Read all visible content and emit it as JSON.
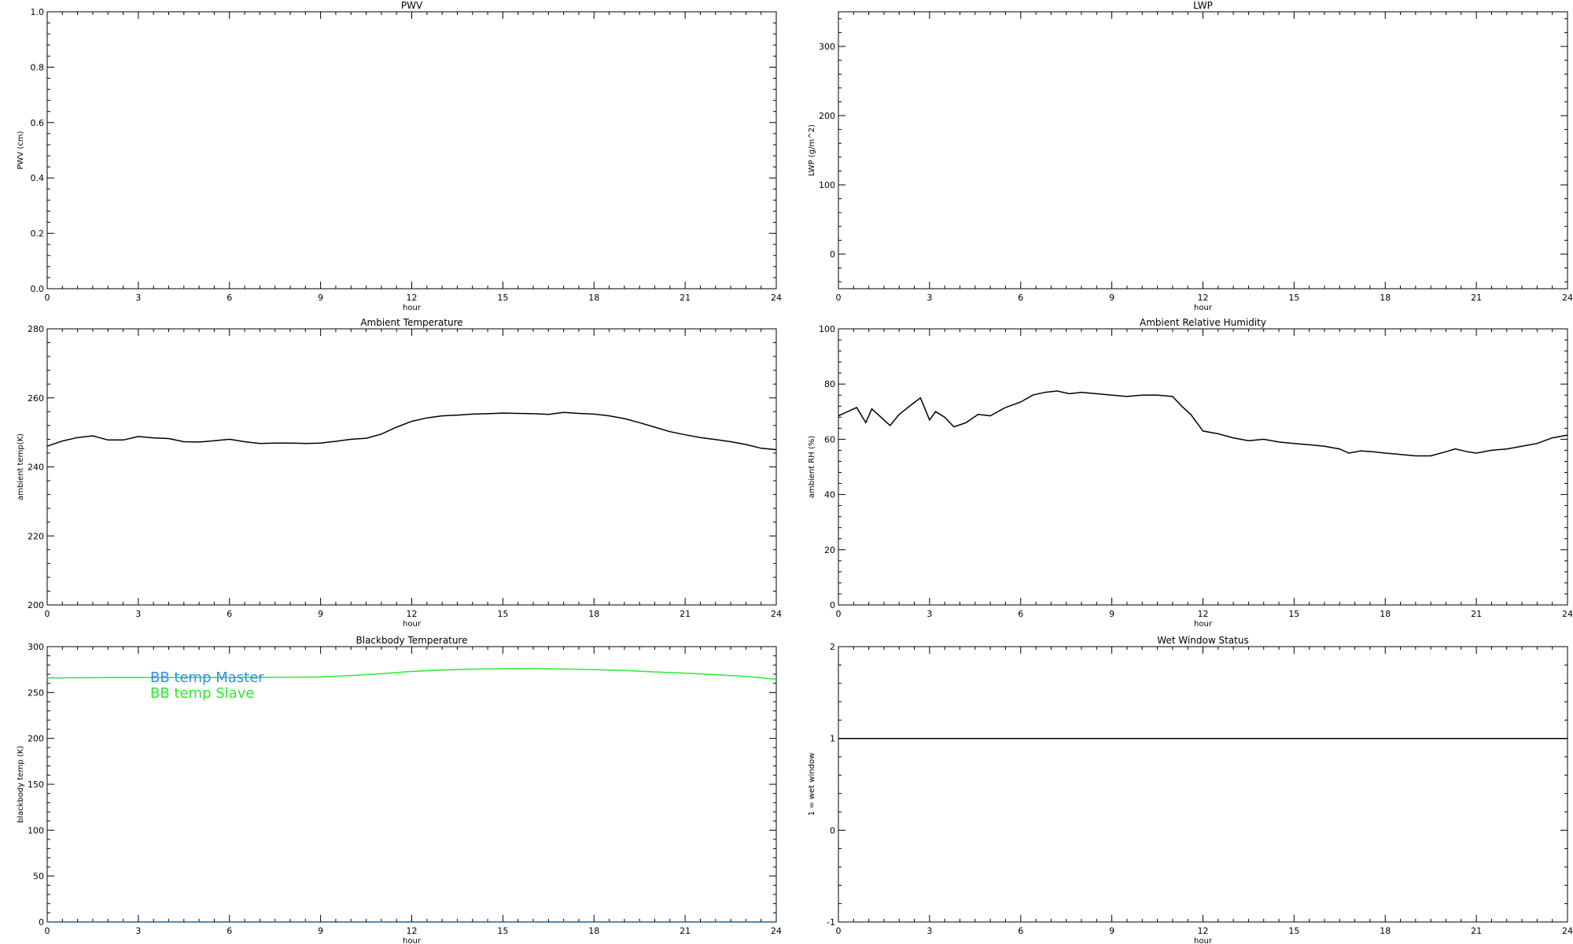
{
  "chart_data": [
    {
      "type": "line",
      "title": "PWV",
      "xlabel": "hour",
      "ylabel": "PWV (cm)",
      "xlim": [
        0,
        24
      ],
      "ylim": [
        0,
        1
      ],
      "xticks": [
        0,
        3,
        6,
        9,
        12,
        15,
        18,
        21,
        24
      ],
      "yticks": [
        0,
        0.2,
        0.4,
        0.6,
        0.8,
        1
      ],
      "ytick_labels": [
        "0.0",
        "0.2",
        "0.4",
        "0.6",
        "0.8",
        "1.0"
      ],
      "series": []
    },
    {
      "type": "line",
      "title": "LWP",
      "xlabel": "hour",
      "ylabel": "LWP (g/m^2)",
      "xlim": [
        0,
        24
      ],
      "ylim": [
        -50,
        350
      ],
      "xticks": [
        0,
        3,
        6,
        9,
        12,
        15,
        18,
        21,
        24
      ],
      "yticks": [
        0,
        100,
        200,
        300
      ],
      "ytick_labels": [
        "0",
        "100",
        "200",
        "300"
      ],
      "series": []
    },
    {
      "type": "line",
      "title": "Ambient Temperature",
      "xlabel": "hour",
      "ylabel": "ambient temp(K)",
      "xlim": [
        0,
        24
      ],
      "ylim": [
        200,
        280
      ],
      "xticks": [
        0,
        3,
        6,
        9,
        12,
        15,
        18,
        21,
        24
      ],
      "yticks": [
        200,
        220,
        240,
        260,
        280
      ],
      "ytick_labels": [
        "200",
        "220",
        "240",
        "260",
        "280"
      ],
      "series": [
        {
          "color": "#000000",
          "x": [
            0,
            0.5,
            1.0,
            1.5,
            2.0,
            2.5,
            3.0,
            3.5,
            4.0,
            4.5,
            5.0,
            5.5,
            6.0,
            6.5,
            7.0,
            7.5,
            8.0,
            8.5,
            9.0,
            9.5,
            10.0,
            10.5,
            11.0,
            11.5,
            12.0,
            12.5,
            13.0,
            13.5,
            14.0,
            14.5,
            15.0,
            15.5,
            16.0,
            16.5,
            17.0,
            17.5,
            18.0,
            18.5,
            19.0,
            19.5,
            20.0,
            20.5,
            21.0,
            21.5,
            22.0,
            22.5,
            23.0,
            23.5,
            24.0
          ],
          "y": [
            246,
            247.5,
            248.5,
            249,
            247.8,
            247.8,
            248.8,
            248.4,
            248.2,
            247.3,
            247.2,
            247.6,
            248.0,
            247.3,
            246.8,
            246.9,
            246.9,
            246.8,
            246.9,
            247.4,
            248.0,
            248.3,
            249.5,
            251.5,
            253.2,
            254.2,
            254.8,
            255.0,
            255.3,
            255.4,
            255.6,
            255.5,
            255.4,
            255.2,
            255.8,
            255.5,
            255.3,
            254.8,
            254.0,
            252.8,
            251.5,
            250.2,
            249.3,
            248.5,
            247.9,
            247.3,
            246.5,
            245.4,
            245.0
          ]
        }
      ]
    },
    {
      "type": "line",
      "title": "Ambient Relative Humidity",
      "xlabel": "hour",
      "ylabel": "ambient RH (%)",
      "xlim": [
        0,
        24
      ],
      "ylim": [
        0,
        100
      ],
      "xticks": [
        0,
        3,
        6,
        9,
        12,
        15,
        18,
        21,
        24
      ],
      "yticks": [
        0,
        20,
        40,
        60,
        80,
        100
      ],
      "ytick_labels": [
        "0",
        "20",
        "40",
        "60",
        "80",
        "100"
      ],
      "series": [
        {
          "color": "#000000",
          "x": [
            0,
            0.3,
            0.6,
            0.9,
            1.1,
            1.4,
            1.7,
            2.0,
            2.4,
            2.7,
            3.0,
            3.2,
            3.5,
            3.8,
            4.2,
            4.6,
            5.0,
            5.5,
            6.0,
            6.4,
            6.8,
            7.2,
            7.6,
            8.0,
            8.5,
            9.0,
            9.5,
            10.0,
            10.5,
            11.0,
            11.3,
            11.6,
            12.0,
            12.5,
            13.0,
            13.5,
            14.0,
            14.5,
            15.0,
            15.5,
            16.0,
            16.5,
            16.8,
            17.2,
            17.6,
            18.0,
            18.5,
            19.0,
            19.5,
            20.0,
            20.3,
            20.7,
            21.0,
            21.5,
            22.0,
            22.5,
            23.0,
            23.5,
            24.0
          ],
          "y": [
            68.5,
            70,
            71.5,
            66,
            71,
            68,
            65,
            69,
            72.5,
            75,
            67,
            70,
            68,
            64.5,
            66,
            69,
            68.5,
            71.5,
            73.5,
            76,
            77,
            77.5,
            76.5,
            77,
            76.5,
            76,
            75.5,
            76,
            76,
            75.5,
            72,
            69,
            63,
            62,
            60.5,
            59.5,
            60,
            59,
            58.5,
            58,
            57.5,
            56.5,
            55,
            55.8,
            55.5,
            55,
            54.5,
            54,
            54,
            55.5,
            56.5,
            55.5,
            55,
            56,
            56.5,
            57.5,
            58.5,
            60.5,
            61.5
          ]
        }
      ]
    },
    {
      "type": "line",
      "title": "Blackbody Temperature",
      "xlabel": "hour",
      "ylabel": "blackbody temp (K)",
      "xlim": [
        0,
        24
      ],
      "ylim": [
        0,
        300
      ],
      "xticks": [
        0,
        3,
        6,
        9,
        12,
        15,
        18,
        21,
        24
      ],
      "yticks": [
        0,
        50,
        100,
        150,
        200,
        250,
        300
      ],
      "ytick_labels": [
        "0",
        "50",
        "100",
        "150",
        "200",
        "250",
        "300"
      ],
      "legend_position": "top-left",
      "series": [
        {
          "name": "BB temp Master",
          "color": "#2a93e6",
          "x": [
            0,
            24
          ],
          "y": [
            0,
            0
          ]
        },
        {
          "name": "BB temp Slave",
          "color": "#2ee82e",
          "x": [
            0,
            2,
            4,
            6,
            8,
            9,
            10,
            11,
            12,
            13,
            14,
            15,
            16,
            17,
            18,
            19,
            20,
            21,
            22,
            23,
            24
          ],
          "y": [
            266,
            266.3,
            266.3,
            266.5,
            266.6,
            267,
            268.5,
            270.5,
            273,
            274.5,
            275.5,
            276,
            276.2,
            275.7,
            275,
            274,
            272.5,
            271,
            269.5,
            267.5,
            264.5
          ]
        }
      ]
    },
    {
      "type": "line",
      "title": "Wet Window Status",
      "xlabel": "hour",
      "ylabel": "1 = wet window",
      "xlim": [
        0,
        24
      ],
      "ylim": [
        -1,
        2
      ],
      "xticks": [
        0,
        3,
        6,
        9,
        12,
        15,
        18,
        21,
        24
      ],
      "yticks": [
        -1,
        0,
        1,
        2
      ],
      "ytick_labels": [
        "-1",
        "0",
        "1",
        "2"
      ],
      "series": [
        {
          "color": "#000000",
          "x": [
            0,
            24
          ],
          "y": [
            1,
            1
          ]
        }
      ]
    }
  ]
}
